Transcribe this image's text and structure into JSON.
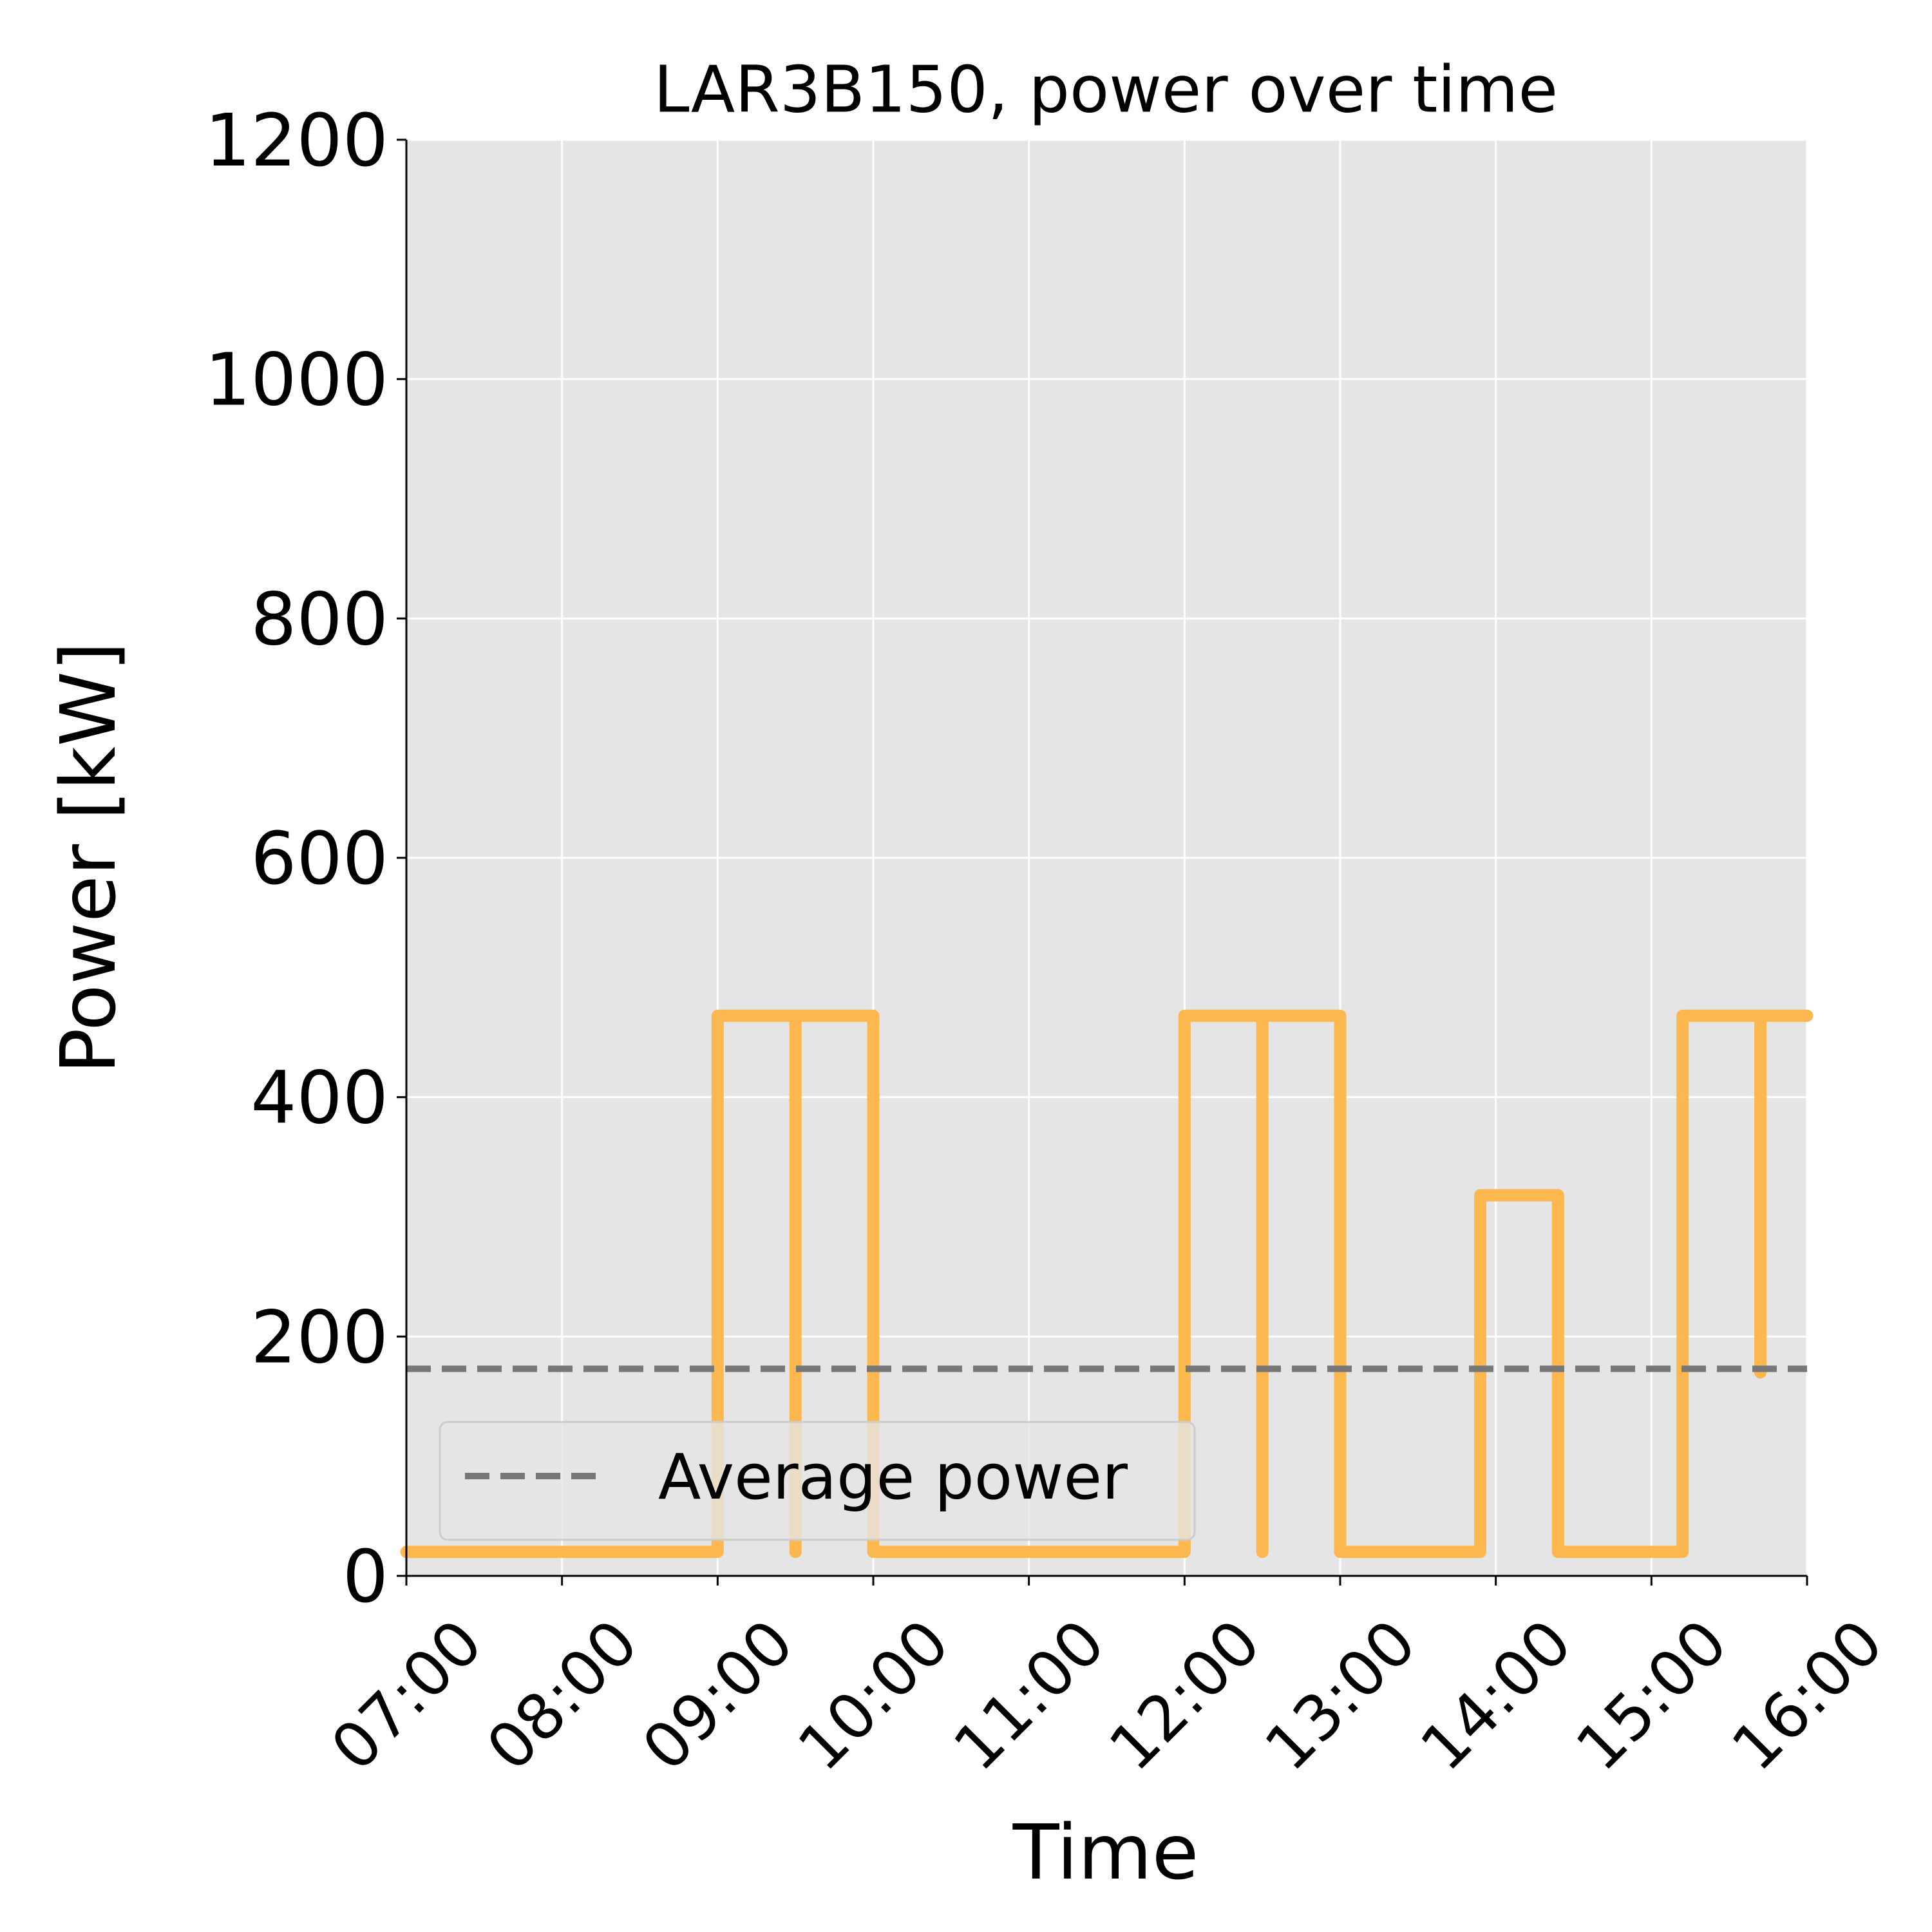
{
  "chart_data": {
    "type": "line",
    "title": "LAR3B150, power over time",
    "xlabel": "Time",
    "ylabel": "Power [kW]",
    "x": [
      7,
      9,
      9,
      9.5,
      9.5,
      9.5,
      10,
      10,
      12,
      12,
      12.5,
      12.5,
      12.5,
      13,
      13,
      13.9,
      13.9,
      14.4,
      14.4,
      15.2,
      15.2,
      15.7,
      15.7,
      15.7,
      16
    ],
    "values": [
      20,
      20,
      468,
      468,
      20,
      468,
      468,
      20,
      20,
      468,
      468,
      20,
      468,
      468,
      20,
      20,
      318,
      318,
      20,
      20,
      468,
      468,
      170,
      468,
      468
    ],
    "color": "#fdb446",
    "reference_line": {
      "name": "Average power",
      "value": 173,
      "color": "#777777"
    },
    "xlim": [
      7,
      16
    ],
    "xticks": [
      {
        "value": 7,
        "label": "07:00"
      },
      {
        "value": 8,
        "label": "08:00"
      },
      {
        "value": 9,
        "label": "09:00"
      },
      {
        "value": 10,
        "label": "10:00"
      },
      {
        "value": 11,
        "label": "11:00"
      },
      {
        "value": 12,
        "label": "12:00"
      },
      {
        "value": 13,
        "label": "13:00"
      },
      {
        "value": 14,
        "label": "14:00"
      },
      {
        "value": 15,
        "label": "15:00"
      },
      {
        "value": 16,
        "label": "16:00"
      }
    ],
    "ylim": [
      0,
      1200
    ],
    "yticks": [
      0,
      200,
      400,
      600,
      800,
      1000,
      1200
    ],
    "grid": true,
    "legend": "lower left"
  }
}
